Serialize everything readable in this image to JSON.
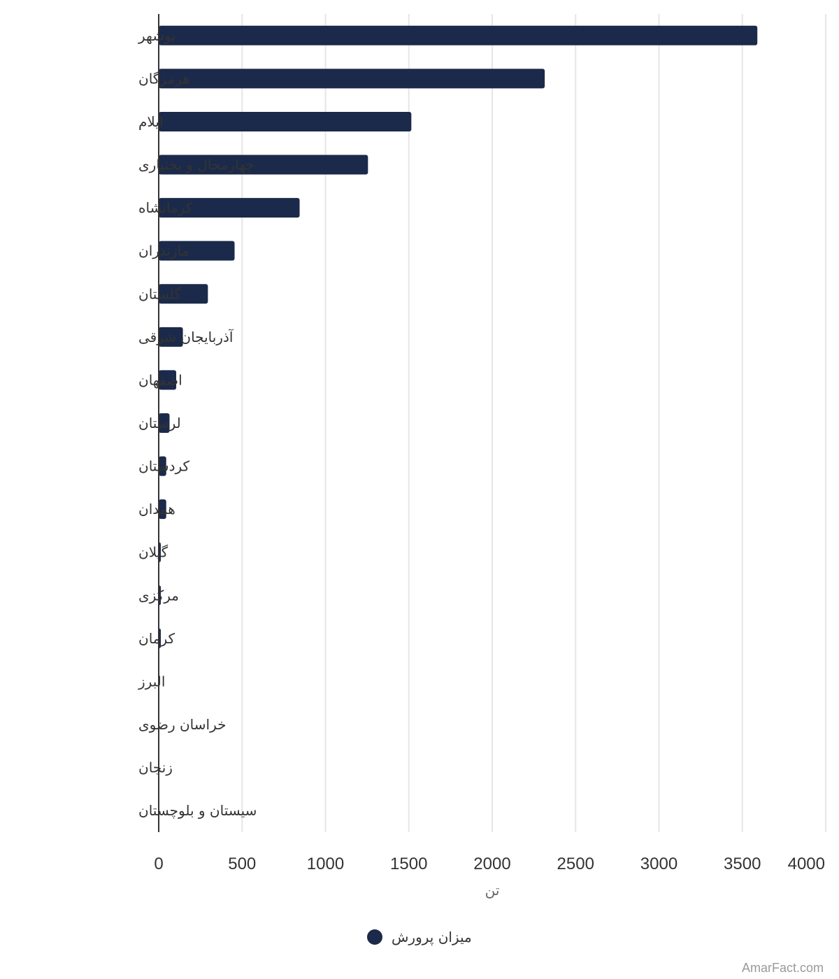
{
  "chart_data": {
    "type": "bar",
    "orientation": "horizontal",
    "categories": [
      "بوشهر",
      "هرمزگان",
      "ایلام",
      "چهارمحال و بختیاری",
      "کرمانشاه",
      "مازندران",
      "گلستان",
      "آذربایجان شرقی",
      "اصفهان",
      "لرستان",
      "کردستان",
      "همدان",
      "گیلان",
      "مرکزی",
      "کرمان",
      "البرز",
      "خراسان رضوی",
      "زنجان",
      "سیستان و بلوچستان"
    ],
    "series": [
      {
        "name": "میزان پرورش",
        "color": "#1b2a4a",
        "values": [
          3590,
          2315,
          1515,
          1255,
          845,
          455,
          295,
          145,
          105,
          65,
          45,
          45,
          8,
          8,
          8,
          0,
          0,
          0,
          0
        ]
      }
    ],
    "xlabel": "تن",
    "xticks": [
      0,
      500,
      1000,
      1500,
      2000,
      2500,
      3000,
      3500,
      4000
    ],
    "xlim": [
      0,
      4000
    ],
    "grid": true,
    "legend_position": "bottom"
  },
  "credit": "AmarFact.com"
}
